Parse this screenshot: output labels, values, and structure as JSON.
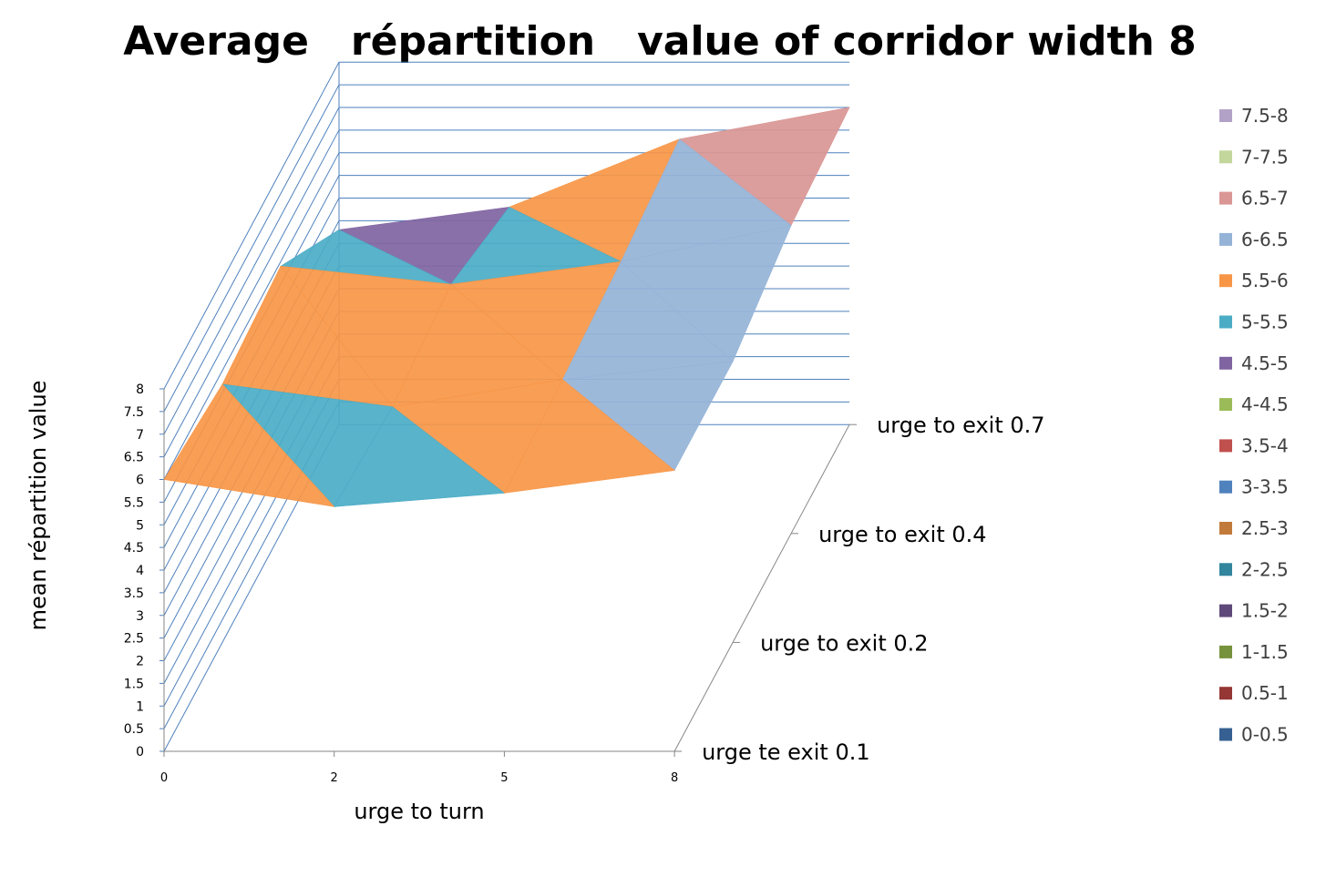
{
  "chart_data": {
    "type": "surface",
    "title": "Average   répartition   value of corridor width 8",
    "xlabel": "urge to turn",
    "zlabel": "mean répartition value",
    "categories": [
      "0",
      "2",
      "5",
      "8"
    ],
    "series": [
      {
        "name": "urge te exit 0.1",
        "values": [
          6.0,
          5.4,
          5.7,
          6.2
        ]
      },
      {
        "name": "urge to exit 0.2",
        "values": [
          5.7,
          5.2,
          5.8,
          6.2
        ]
      },
      {
        "name": "urge to exit 0.4",
        "values": [
          5.9,
          5.5,
          6.0,
          6.8
        ]
      },
      {
        "name": "urge to exit 0.7",
        "values": [
          4.3,
          4.8,
          6.3,
          7.0
        ]
      }
    ],
    "zlim": [
      0,
      8
    ],
    "zticks": [
      "0",
      "0.5",
      "1",
      "1.5",
      "2",
      "2.5",
      "3",
      "3.5",
      "4",
      "4.5",
      "5",
      "5.5",
      "6",
      "6.5",
      "7",
      "7.5",
      "8"
    ],
    "legend_position": "right",
    "legend": [
      {
        "label": "7.5-8",
        "color": "#b3a2c7"
      },
      {
        "label": "7-7.5",
        "color": "#c3d69b"
      },
      {
        "label": "6.5-7",
        "color": "#d99694"
      },
      {
        "label": "6-6.5",
        "color": "#95b3d7"
      },
      {
        "label": "5.5-6",
        "color": "#f79646"
      },
      {
        "label": "5-5.5",
        "color": "#4bacc6"
      },
      {
        "label": "4.5-5",
        "color": "#8064a2"
      },
      {
        "label": "4-4.5",
        "color": "#9bbb59"
      },
      {
        "label": "3.5-4",
        "color": "#c0504d"
      },
      {
        "label": "3-3.5",
        "color": "#4f81bd"
      },
      {
        "label": "2.5-3",
        "color": "#c27a3a"
      },
      {
        "label": "2-2.5",
        "color": "#31859c"
      },
      {
        "label": "1.5-2",
        "color": "#5f497a"
      },
      {
        "label": "1-1.5",
        "color": "#76923c"
      },
      {
        "label": "0.5-1",
        "color": "#953734"
      },
      {
        "label": "0-0.5",
        "color": "#366092"
      }
    ]
  }
}
